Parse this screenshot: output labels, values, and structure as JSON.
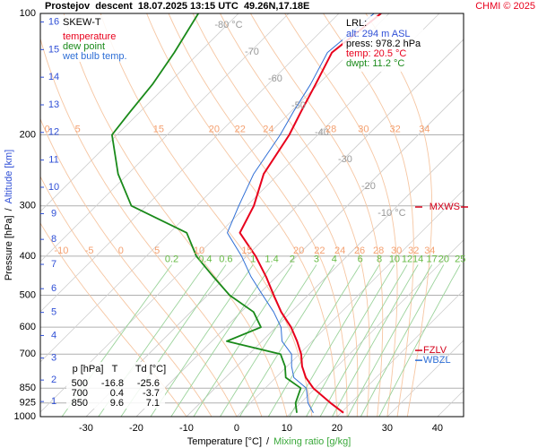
{
  "header": {
    "title": "Prostejov  descent  18.07.2025 13:15 UTC  49.26N,17.18E",
    "credit": "CHMI © 2025"
  },
  "chart_data": {
    "type": "skew-t",
    "title": "SKEW-T",
    "pressure": [
      978,
      925,
      850,
      800,
      750,
      700,
      650,
      600,
      550,
      500,
      450,
      400,
      350,
      300,
      250,
      200,
      175,
      150,
      125,
      100
    ],
    "series": [
      {
        "name": "temperature",
        "color": "#e8001c",
        "values": [
          20.5,
          16,
          9.6,
          6,
          3,
          0.4,
          -3,
          -7,
          -12,
          -16.8,
          -22,
          -28.2,
          -36,
          -38.6,
          -43,
          -45.7,
          -48,
          -50.5,
          -53.6,
          -51.6
        ]
      },
      {
        "name": "dew point",
        "color": "#1a8a1a",
        "values": [
          11.2,
          9,
          7.1,
          2,
          -0.4,
          -3.7,
          -17,
          -13,
          -17.5,
          -25.6,
          -32.5,
          -40,
          -46.6,
          -63,
          -72,
          -81,
          -82,
          -83,
          -85,
          -88
        ]
      },
      {
        "name": "wet bulb temp.",
        "color": "#2f6fd6",
        "values": [
          14.5,
          11.5,
          8.2,
          3.6,
          0.9,
          -1.5,
          -6,
          -9,
          -13.5,
          -19,
          -25,
          -31,
          -38.5,
          -41.6,
          -45,
          -47.5,
          -49.5,
          -51.5,
          -54.5,
          -53
        ]
      }
    ],
    "xlabel": "Temperature [°C]",
    "xlabel_sep": "/",
    "xlabel2": "Mixing ratio [g/kg]",
    "ylabel": "Pressure [hPa]",
    "ylabel_sep": "/",
    "ylabel2": "Altitude [km]",
    "xlim": [
      -39.1,
      45.2
    ],
    "ylim": [
      1000,
      100
    ],
    "log_y": true,
    "xticks": [
      -30,
      -20,
      -10,
      0,
      10,
      20,
      30,
      40
    ],
    "yticks": [
      100,
      200,
      300,
      400,
      500,
      600,
      700,
      850,
      925,
      1000
    ],
    "altitude_ticks": [
      1,
      2,
      3,
      4,
      5,
      6,
      7,
      8,
      9,
      10,
      11,
      12,
      13,
      14,
      15,
      16
    ],
    "isotherms": [
      {
        "value": -80,
        "label": "-80 °C"
      },
      -70,
      -60,
      -50,
      -40,
      -30,
      -20,
      {
        "value": -10,
        "label": "-10 °C"
      }
    ],
    "mixing_ratios": [
      0.2,
      0.4,
      0.6,
      1,
      1.4,
      2,
      3,
      4,
      6,
      8,
      10,
      12,
      14,
      17,
      20,
      25
    ],
    "moist_adiabats": [
      -10,
      -5,
      0,
      5,
      10,
      15,
      20,
      22,
      24,
      26,
      28,
      30,
      32,
      34
    ],
    "moist_adiabat_labels_200": [
      0,
      5,
      15,
      20,
      22,
      24,
      28,
      30,
      32,
      34
    ],
    "levels": [
      {
        "name": "MXWS",
        "pressure": 302,
        "color": "#d4001a"
      },
      {
        "name": "FZLV",
        "pressure": 685,
        "color": "#d4001a"
      },
      {
        "name": "WBZL",
        "pressure": 725,
        "color": "#2f6fd6"
      }
    ],
    "lrl": {
      "title": "LRL:",
      "lines": [
        {
          "text": "alt: 294 m ASL",
          "color": "#2f4fd6"
        },
        {
          "text": "press: 978.2 hPa",
          "color": "#000000"
        },
        {
          "text": "temp: 20.5 °C",
          "color": "#e8001c"
        },
        {
          "text": "dwpt: 11.2 °C",
          "color": "#1a8a1a"
        }
      ]
    },
    "table": {
      "header": [
        "p [hPa]",
        "T",
        "Td [°C]"
      ],
      "rows": [
        [
          500,
          -16.8,
          -25.6
        ],
        [
          700,
          0.4,
          -3.7
        ],
        [
          850,
          9.6,
          7.1
        ]
      ]
    }
  }
}
